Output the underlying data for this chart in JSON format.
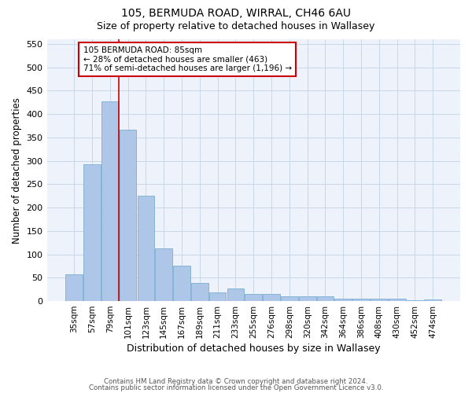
{
  "title_line1": "105, BERMUDA ROAD, WIRRAL, CH46 6AU",
  "title_line2": "Size of property relative to detached houses in Wallasey",
  "xlabel": "Distribution of detached houses by size in Wallasey",
  "ylabel": "Number of detached properties",
  "categories": [
    "35sqm",
    "57sqm",
    "79sqm",
    "101sqm",
    "123sqm",
    "145sqm",
    "167sqm",
    "189sqm",
    "211sqm",
    "233sqm",
    "255sqm",
    "276sqm",
    "298sqm",
    "320sqm",
    "342sqm",
    "364sqm",
    "386sqm",
    "408sqm",
    "430sqm",
    "452sqm",
    "474sqm"
  ],
  "values": [
    57,
    292,
    428,
    367,
    225,
    113,
    76,
    38,
    18,
    27,
    15,
    15,
    10,
    10,
    10,
    5,
    5,
    5,
    5,
    1,
    4
  ],
  "bar_color": "#aec6e8",
  "bar_edge_color": "#7aaed4",
  "grid_color": "#c8d8e8",
  "background_color": "#eef2fa",
  "vline_x": 2.5,
  "vline_color": "#cc0000",
  "annotation_text": "105 BERMUDA ROAD: 85sqm\n← 28% of detached houses are smaller (463)\n71% of semi-detached houses are larger (1,196) →",
  "annotation_box_color": "#ffffff",
  "annotation_border_color": "#cc0000",
  "ylim": [
    0,
    560
  ],
  "yticks": [
    0,
    50,
    100,
    150,
    200,
    250,
    300,
    350,
    400,
    450,
    500,
    550
  ],
  "footer_line1": "Contains HM Land Registry data © Crown copyright and database right 2024.",
  "footer_line2": "Contains public sector information licensed under the Open Government Licence v3.0."
}
